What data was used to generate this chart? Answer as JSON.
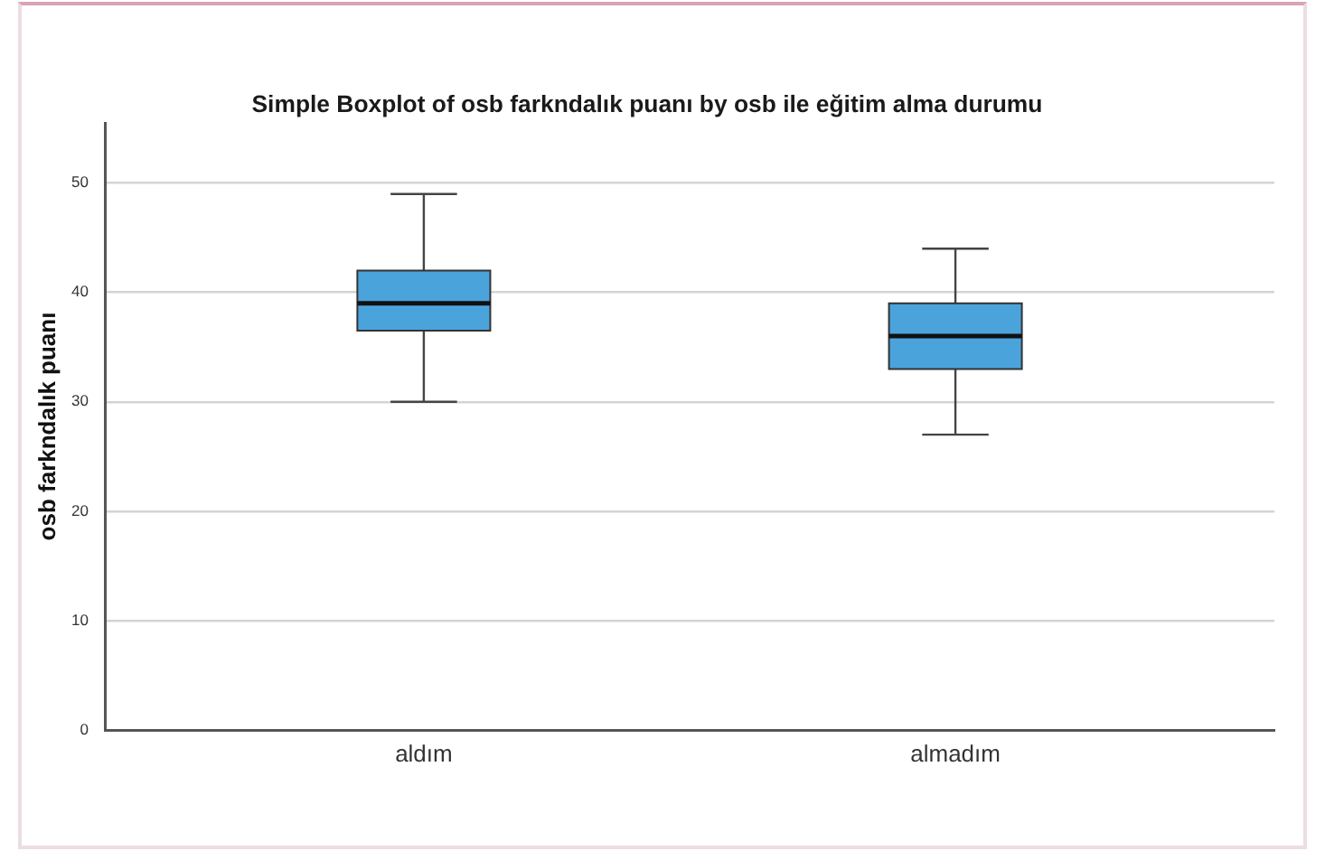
{
  "chart_data": {
    "type": "box",
    "title": "Simple Boxplot of osb farkndalık puanı by osb ile eğitim alma durumu",
    "ylabel": "osb farkndalık puanı",
    "categories": [
      "aldım",
      "almadım"
    ],
    "boxes": [
      {
        "low": 30,
        "q1": 36.5,
        "median": 39,
        "q3": 42,
        "high": 49
      },
      {
        "low": 27,
        "q1": 33,
        "median": 36,
        "q3": 39,
        "high": 44
      }
    ],
    "color": "#4ba3dc",
    "ylim": [
      0,
      55.5
    ],
    "yticks": [
      0,
      10,
      20,
      30,
      40,
      50
    ],
    "grid": "y"
  }
}
